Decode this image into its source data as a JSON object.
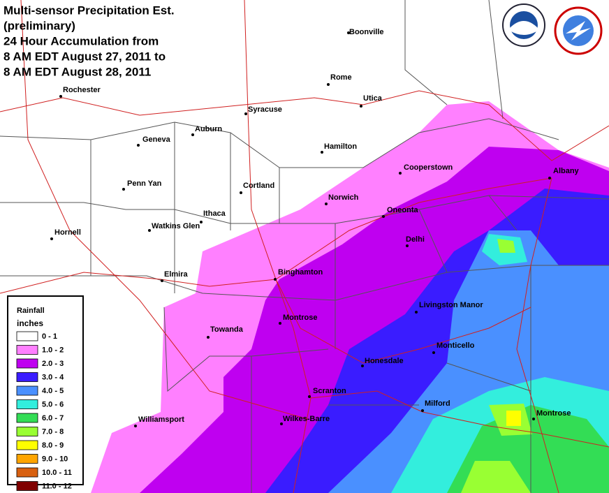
{
  "header": {
    "title": [
      "Multi-sensor Precipitation Est.",
      "(preliminary)",
      "24 Hour Accumulation from",
      "8 AM EDT August 27, 2011 to",
      "8 AM EDT August 28, 2011"
    ]
  },
  "cities": [
    "Boonville",
    "Rome",
    "Utica",
    "Rochester",
    "Syracuse",
    "Auburn",
    "Geneva",
    "Hamilton",
    "Cooperstown",
    "Albany",
    "Penn Yan",
    "Cortland",
    "Norwich",
    "Oneonta",
    "Watkins Glen",
    "Ithaca",
    "Hornell",
    "Delhi",
    "Elmira",
    "Binghamton",
    "Livingston Manor",
    "Towanda",
    "Montrose",
    "Monticello",
    "Honesdale",
    "Scranton",
    "Milford",
    "Montrose",
    "Williamsport",
    "Wilkes-Barre"
  ],
  "legend": {
    "title": "Rainfall",
    "units": "inches",
    "entries": [
      {
        "label": "0 - 1",
        "color": "#ffffff"
      },
      {
        "label": "1.0 - 2",
        "color": "#ff80ff"
      },
      {
        "label": "2.0 - 3",
        "color": "#bf00f0"
      },
      {
        "label": "3.0 - 4",
        "color": "#3a1cff"
      },
      {
        "label": "4.0 - 5",
        "color": "#4a90ff"
      },
      {
        "label": "5.0 - 6",
        "color": "#33eedd"
      },
      {
        "label": "6.0 - 7",
        "color": "#33dd55"
      },
      {
        "label": "7.0 - 8",
        "color": "#99ff33"
      },
      {
        "label": "8.0 - 9",
        "color": "#ffff00"
      },
      {
        "label": "9.0 - 10",
        "color": "#ffa500"
      },
      {
        "label": "10.0 - 11",
        "color": "#d86010"
      },
      {
        "label": "11.0 - 12",
        "color": "#800000"
      }
    ]
  }
}
